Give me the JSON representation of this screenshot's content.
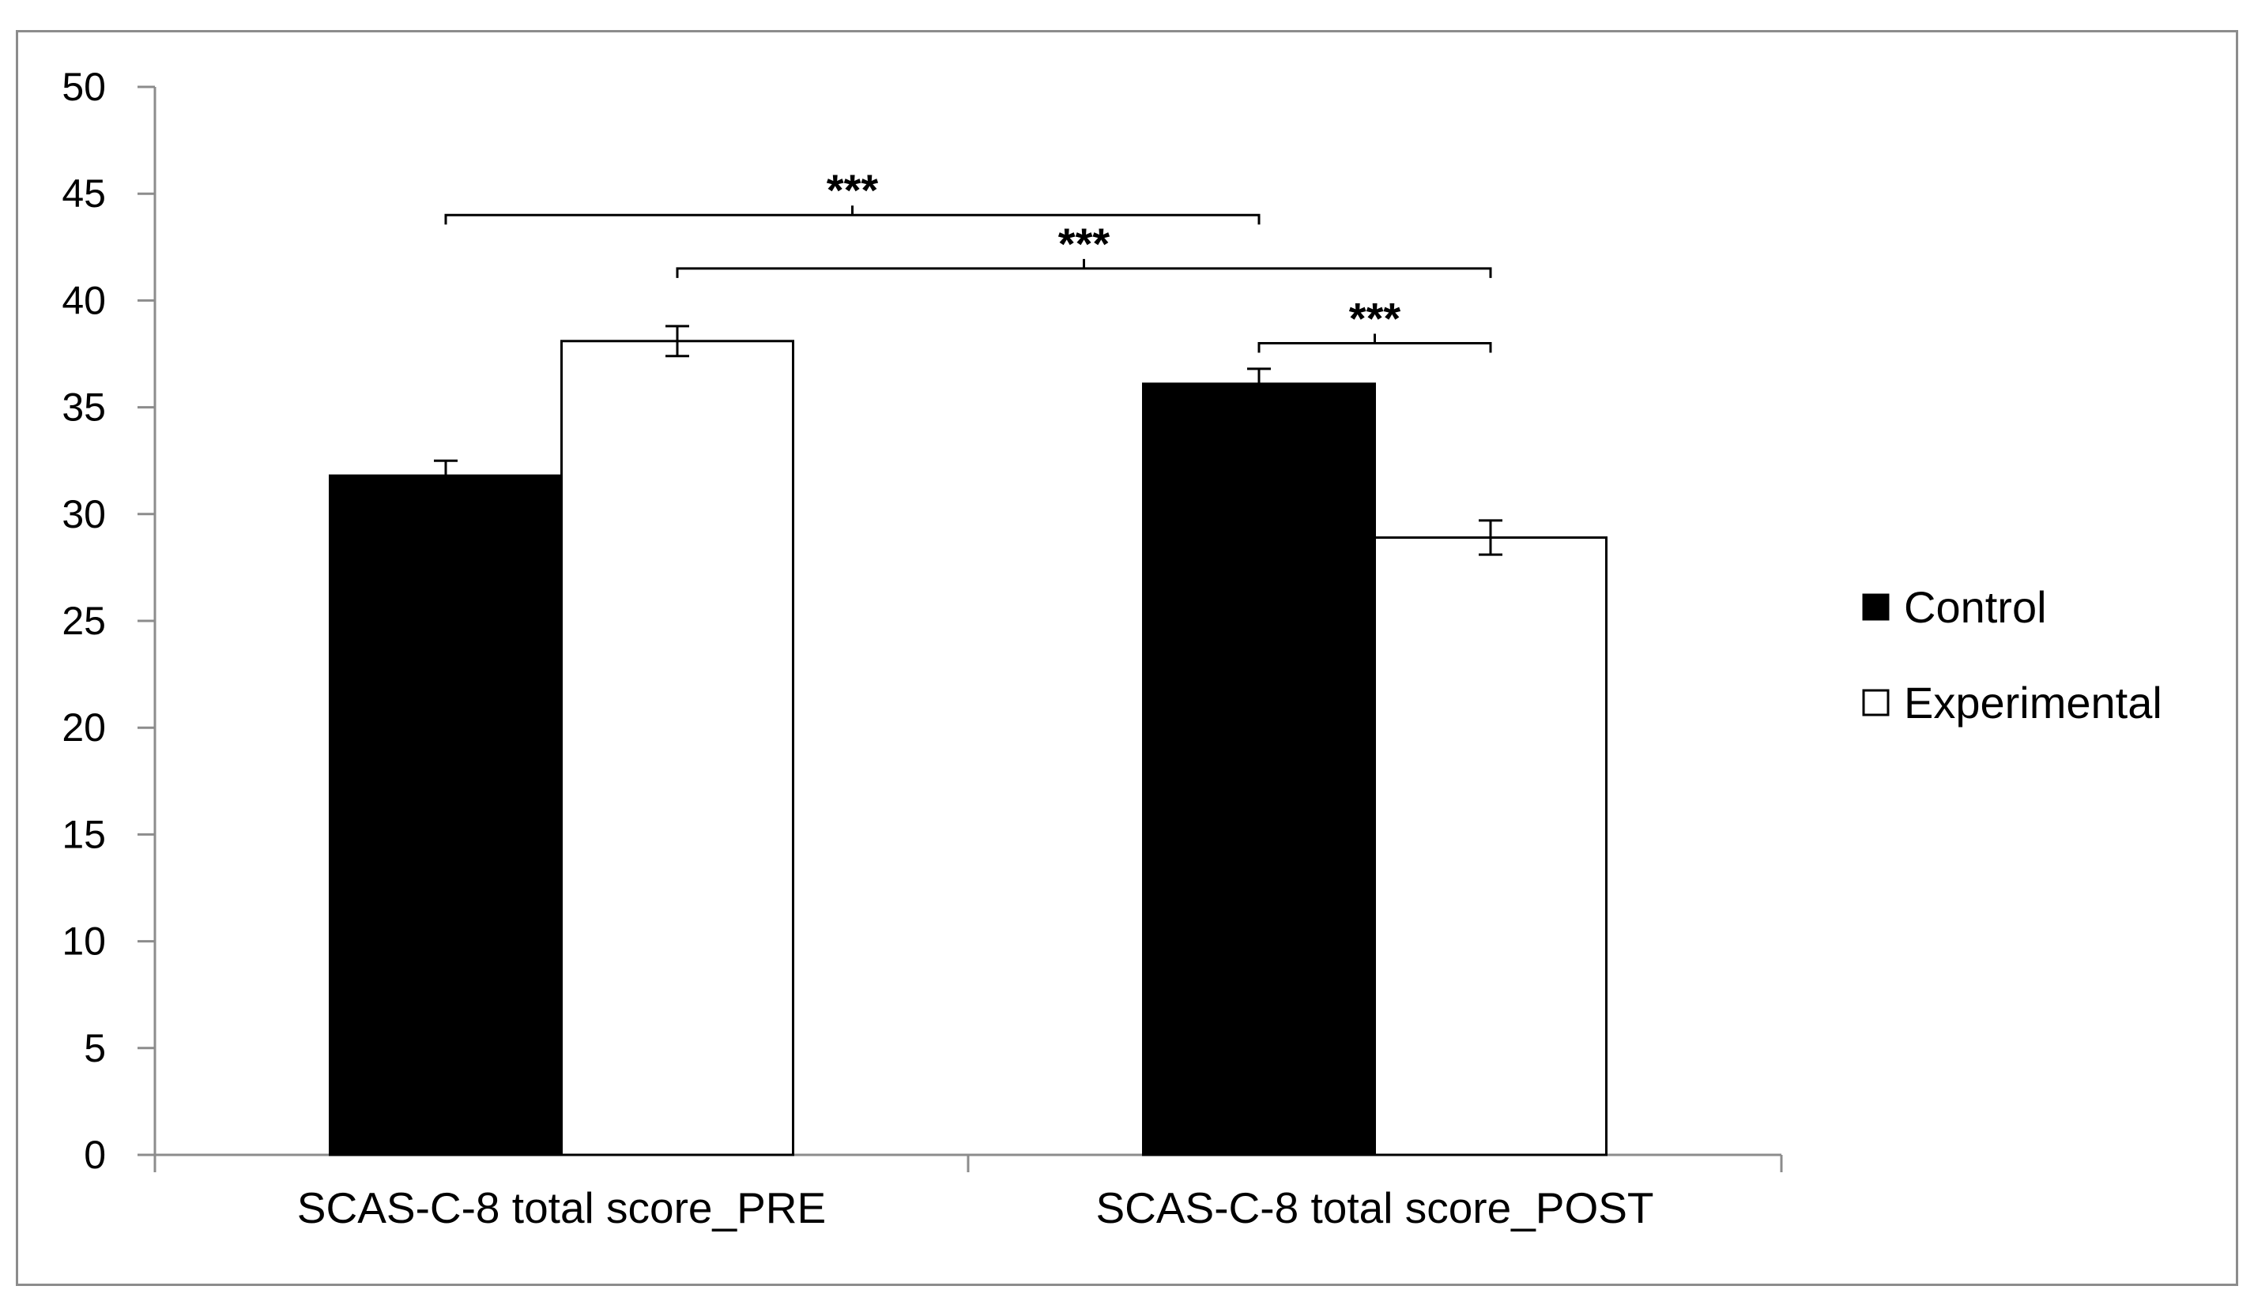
{
  "chart_data": {
    "type": "bar",
    "title": "",
    "xlabel": "",
    "ylabel": "",
    "categories": [
      "SCAS-C-8 total score_PRE",
      "SCAS-C-8 total score_POST"
    ],
    "series": [
      {
        "name": "Control",
        "values": [
          31.8,
          36.1
        ],
        "errors": [
          0.7,
          0.7
        ],
        "color": "#000000"
      },
      {
        "name": "Experimental",
        "values": [
          38.1,
          28.9
        ],
        "errors": [
          0.7,
          0.8
        ],
        "color": "#ffffff"
      }
    ],
    "ylim": [
      0,
      50
    ],
    "yticks": [
      0,
      5,
      10,
      15,
      20,
      25,
      30,
      35,
      40,
      45,
      50
    ],
    "grid": false,
    "legend_position": "right",
    "significance": [
      {
        "from": {
          "category": 0,
          "series": 0
        },
        "to": {
          "category": 1,
          "series": 0
        },
        "level": 44,
        "label": "***"
      },
      {
        "from": {
          "category": 0,
          "series": 1
        },
        "to": {
          "category": 1,
          "series": 1
        },
        "level": 41.5,
        "label": "***"
      },
      {
        "from": {
          "category": 1,
          "series": 0
        },
        "to": {
          "category": 1,
          "series": 1
        },
        "level": 38,
        "label": "***"
      }
    ]
  }
}
